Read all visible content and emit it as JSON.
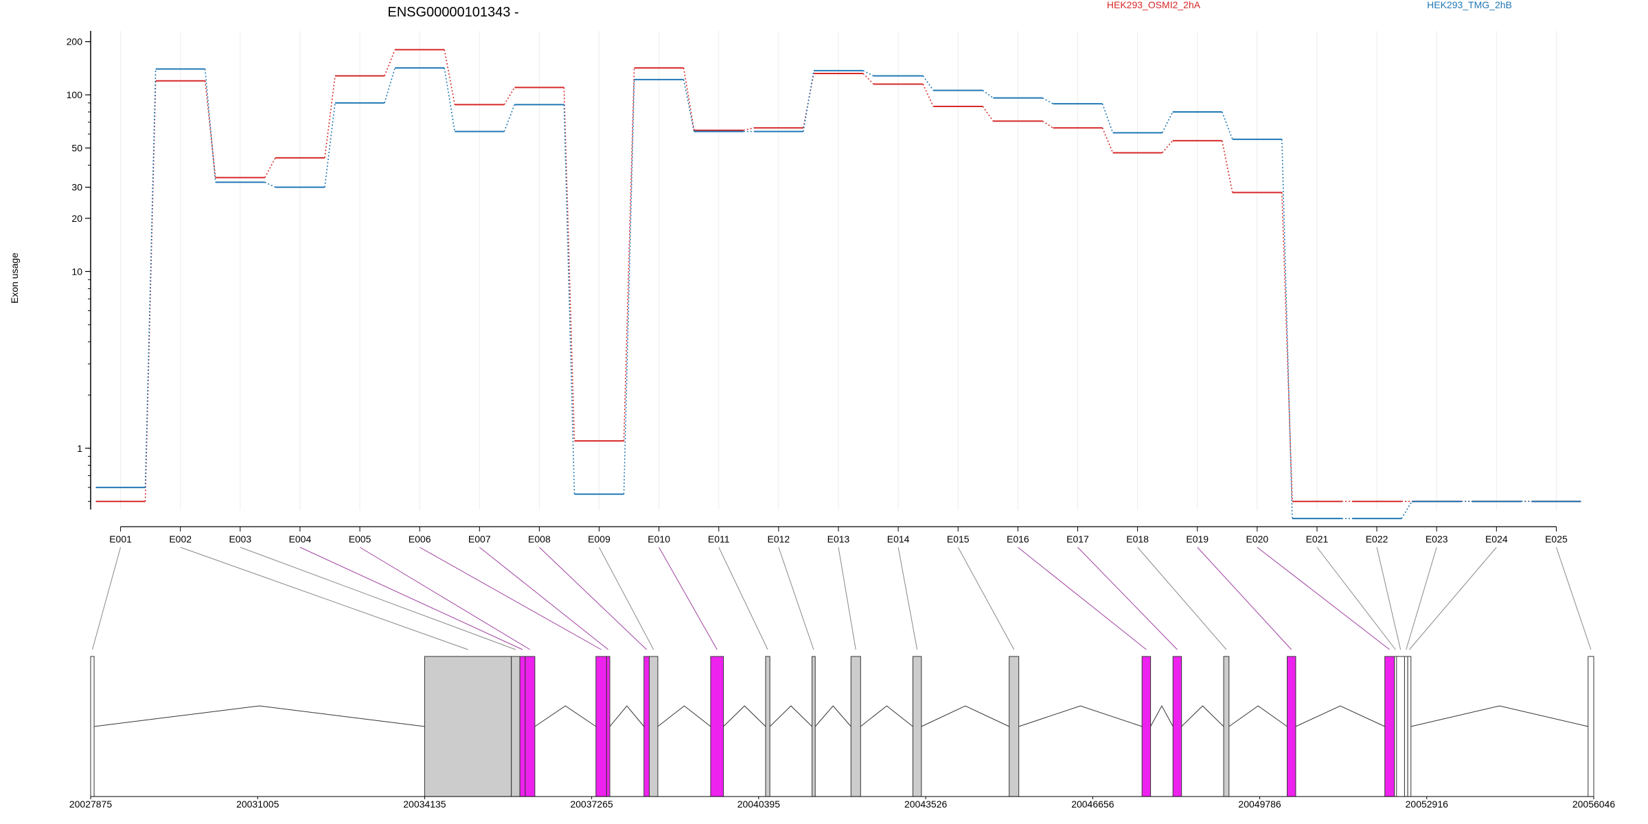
{
  "chart_data": {
    "type": "line",
    "title": "ENSG00000101343 -",
    "ylabel": "Exon usage",
    "yscale": "log",
    "ylim": [
      0.45,
      230
    ],
    "yticks": [
      1,
      10,
      20,
      30,
      50,
      100,
      200
    ],
    "grid": true,
    "legend_position": "top",
    "categories": [
      "E001",
      "E002",
      "E003",
      "E004",
      "E005",
      "E006",
      "E007",
      "E008",
      "E009",
      "E010",
      "E011",
      "E012",
      "E013",
      "E014",
      "E015",
      "E016",
      "E017",
      "E018",
      "E019",
      "E020",
      "E021",
      "E022",
      "E023",
      "E024",
      "E025"
    ],
    "series": [
      {
        "name": "HEK293_OSMI2_2hA",
        "color": "#d62728",
        "values": [
          0.5,
          120,
          34,
          44,
          128,
          180,
          88,
          110,
          1.1,
          142,
          63,
          65,
          132,
          115,
          86,
          71,
          65,
          47,
          55,
          28,
          0.5,
          0.5,
          0.5,
          0.5,
          0.5
        ]
      },
      {
        "name": "HEK293_TMG_2hB",
        "color": "#1f77b4",
        "values": [
          0.6,
          140,
          32,
          30,
          90,
          142,
          62,
          88,
          0.55,
          122,
          62,
          62,
          137,
          128,
          106,
          96,
          89,
          61,
          80,
          56,
          0.4,
          0.4,
          0.5,
          0.5,
          0.5
        ]
      }
    ],
    "gene_model": {
      "coordinates": [
        "20027875",
        "20031005",
        "20034135",
        "20037265",
        "20040395",
        "20043526",
        "20046656",
        "20049786",
        "20052916",
        "20056046"
      ],
      "coord_values": [
        20027875,
        20031005,
        20034135,
        20037265,
        20040395,
        20043526,
        20046656,
        20049786,
        20052916,
        20056046
      ],
      "exons": [
        {
          "start": 20027875,
          "end": 20027940,
          "fill": "#ffffff",
          "tick": "E001"
        },
        {
          "start": 20034135,
          "end": 20035760,
          "fill": "#cccccc",
          "tick": "E002"
        },
        {
          "start": 20035760,
          "end": 20035920,
          "fill": "#cccccc",
          "tick": "E003"
        },
        {
          "start": 20035920,
          "end": 20036020,
          "fill": "#ee22ee",
          "tick": "E004"
        },
        {
          "start": 20036020,
          "end": 20036200,
          "fill": "#ee22ee",
          "tick": "E005"
        },
        {
          "start": 20037345,
          "end": 20037545,
          "fill": "#ee22ee",
          "tick": "E006"
        },
        {
          "start": 20037545,
          "end": 20037605,
          "fill": "#ee22ee",
          "tick": "E007"
        },
        {
          "start": 20038245,
          "end": 20038345,
          "fill": "#ee22ee",
          "tick": "E008"
        },
        {
          "start": 20038345,
          "end": 20038505,
          "fill": "#cccccc",
          "tick": "E009"
        },
        {
          "start": 20039495,
          "end": 20039735,
          "fill": "#ee22ee",
          "tick": "E010"
        },
        {
          "start": 20040525,
          "end": 20040605,
          "fill": "#cccccc",
          "tick": "E011"
        },
        {
          "start": 20041395,
          "end": 20041455,
          "fill": "#cccccc",
          "tick": "E012"
        },
        {
          "start": 20042125,
          "end": 20042305,
          "fill": "#cccccc",
          "tick": "E013"
        },
        {
          "start": 20043285,
          "end": 20043445,
          "fill": "#cccccc",
          "tick": "E014"
        },
        {
          "start": 20045090,
          "end": 20045270,
          "fill": "#cccccc",
          "tick": "E015"
        },
        {
          "start": 20047580,
          "end": 20047740,
          "fill": "#ee22ee",
          "tick": "E016"
        },
        {
          "start": 20048160,
          "end": 20048320,
          "fill": "#ee22ee",
          "tick": "E017"
        },
        {
          "start": 20049110,
          "end": 20049210,
          "fill": "#cccccc",
          "tick": "E018"
        },
        {
          "start": 20050300,
          "end": 20050460,
          "fill": "#ee22ee",
          "tick": "E019"
        },
        {
          "start": 20052130,
          "end": 20052310,
          "fill": "#ee22ee",
          "tick": "E020"
        },
        {
          "start": 20052310,
          "end": 20052350,
          "fill": "#ffffff",
          "tick": "E021"
        },
        {
          "start": 20052350,
          "end": 20052500,
          "fill": "#ffffff",
          "tick": "E022"
        },
        {
          "start": 20052500,
          "end": 20052560,
          "fill": "#ffffff",
          "tick": "E023"
        },
        {
          "start": 20052560,
          "end": 20052620,
          "fill": "#ffffff",
          "tick": "E024"
        },
        {
          "start": 20055940,
          "end": 20056046,
          "fill": "#ffffff",
          "tick": "E025"
        }
      ]
    }
  }
}
